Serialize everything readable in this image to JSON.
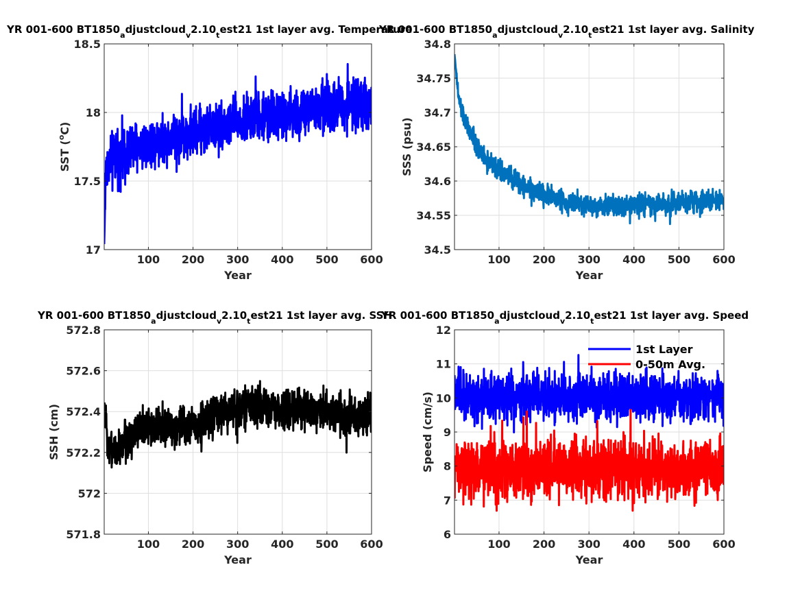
{
  "chart_data": [
    {
      "type": "line",
      "title_parts": [
        "YR 001-600 BT1850",
        "a",
        "djustcloud",
        "v",
        "2.10",
        "t",
        "est21 1st layer avg. Temperature"
      ],
      "xlabel": "Year",
      "ylabel_parts": [
        "SST (",
        "o",
        "C)"
      ],
      "xlim": [
        1,
        600
      ],
      "ylim": [
        17,
        18.5
      ],
      "xticks": [
        100,
        200,
        300,
        400,
        500,
        600
      ],
      "yticks": [
        17,
        17.5,
        18,
        18.5
      ],
      "ytick_labels": [
        "17",
        "17.5",
        "18",
        "18.5"
      ],
      "grid": true,
      "series": [
        {
          "color": "#0000ff",
          "line_width": 3,
          "x": [
            1,
            5,
            25,
            50,
            75,
            100,
            150,
            200,
            250,
            300,
            350,
            400,
            450,
            500,
            550,
            600
          ],
          "y": [
            17.04,
            17.62,
            17.68,
            17.72,
            17.75,
            17.78,
            17.82,
            17.86,
            17.9,
            17.93,
            17.96,
            17.98,
            18.0,
            18.04,
            18.06,
            18.07
          ],
          "spread": [
            0.0,
            0.25,
            0.3,
            0.3,
            0.28,
            0.26,
            0.26,
            0.26,
            0.26,
            0.26,
            0.26,
            0.26,
            0.26,
            0.28,
            0.26,
            0.26
          ]
        }
      ]
    },
    {
      "type": "line",
      "title_parts": [
        "YR 001-600 BT1850",
        "a",
        "djustcloud",
        "v",
        "2.10",
        "t",
        "est21 1st layer avg. Salinity"
      ],
      "xlabel": "Year",
      "ylabel": "SSS (psu)",
      "xlim": [
        1,
        600
      ],
      "ylim": [
        34.5,
        34.8
      ],
      "xticks": [
        100,
        200,
        300,
        400,
        500,
        600
      ],
      "yticks": [
        34.5,
        34.55,
        34.6,
        34.65,
        34.7,
        34.75,
        34.8
      ],
      "ytick_labels": [
        "34.5",
        "34.55",
        "34.6",
        "34.65",
        "34.7",
        "34.75",
        "34.8"
      ],
      "grid": true,
      "series": [
        {
          "color": "#0072bd",
          "line_width": 3,
          "x": [
            1,
            10,
            25,
            50,
            75,
            100,
            150,
            200,
            250,
            300,
            350,
            400,
            450,
            500,
            550,
            600
          ],
          "y": [
            34.785,
            34.72,
            34.685,
            34.65,
            34.63,
            34.615,
            34.595,
            34.58,
            34.57,
            34.565,
            34.565,
            34.565,
            34.565,
            34.568,
            34.57,
            34.572
          ],
          "spread": [
            0.0,
            0.02,
            0.022,
            0.022,
            0.022,
            0.022,
            0.022,
            0.022,
            0.022,
            0.022,
            0.022,
            0.022,
            0.022,
            0.022,
            0.022,
            0.022
          ]
        }
      ]
    },
    {
      "type": "line",
      "title_parts": [
        "YR 001-600 BT1850",
        "a",
        "djustcloud",
        "v",
        "2.10",
        "t",
        "est21 1st layer avg. SSH"
      ],
      "xlabel": "Year",
      "ylabel": "SSH (cm)",
      "xlim": [
        1,
        600
      ],
      "ylim": [
        571.8,
        572.8
      ],
      "xticks": [
        100,
        200,
        300,
        400,
        500,
        600
      ],
      "yticks": [
        571.8,
        572,
        572.2,
        572.4,
        572.6,
        572.8
      ],
      "ytick_labels": [
        "571.8",
        "572",
        "572.2",
        "572.4",
        "572.6",
        "572.8"
      ],
      "grid": true,
      "series": [
        {
          "color": "#000000",
          "line_width": 3,
          "x": [
            1,
            10,
            25,
            50,
            75,
            100,
            150,
            200,
            250,
            300,
            350,
            400,
            450,
            500,
            550,
            600
          ],
          "y": [
            572.4,
            572.25,
            572.2,
            572.26,
            572.3,
            572.33,
            572.33,
            572.33,
            572.38,
            572.42,
            572.43,
            572.4,
            572.42,
            572.4,
            572.38,
            572.37
          ],
          "spread": [
            0.1,
            0.13,
            0.14,
            0.14,
            0.14,
            0.14,
            0.14,
            0.14,
            0.14,
            0.14,
            0.14,
            0.14,
            0.14,
            0.14,
            0.14,
            0.14
          ]
        }
      ]
    },
    {
      "type": "line",
      "title_parts": [
        "YR 001-600 BT1850",
        "a",
        "djustcloud",
        "v",
        "2.10",
        "t",
        "est21 1st layer avg. Speed"
      ],
      "xlabel": "Year",
      "ylabel": "Speed (cm/s)",
      "xlim": [
        1,
        600
      ],
      "ylim": [
        6,
        12
      ],
      "xticks": [
        100,
        200,
        300,
        400,
        500,
        600
      ],
      "yticks": [
        6,
        7,
        8,
        9,
        10,
        11,
        12
      ],
      "ytick_labels": [
        "6",
        "7",
        "8",
        "9",
        "10",
        "11",
        "12"
      ],
      "grid": true,
      "legend_placement": "top-right",
      "series": [
        {
          "name": "1st Layer",
          "color": "#0000ff",
          "line_width": 3,
          "x": [
            1,
            100,
            200,
            300,
            400,
            500,
            600
          ],
          "y": [
            10.05,
            10.0,
            10.05,
            10.0,
            10.0,
            10.0,
            10.0
          ],
          "spread": [
            1.0,
            1.0,
            1.0,
            1.0,
            1.0,
            1.0,
            1.0
          ]
        },
        {
          "name": "0-50m Avg.",
          "color": "#ff0000",
          "line_width": 3,
          "x": [
            1,
            100,
            200,
            300,
            400,
            500,
            600
          ],
          "y": [
            7.9,
            7.9,
            7.95,
            7.9,
            7.9,
            7.9,
            7.9
          ],
          "spread": [
            1.25,
            1.25,
            1.25,
            1.25,
            1.25,
            1.25,
            1.25
          ]
        }
      ]
    }
  ]
}
